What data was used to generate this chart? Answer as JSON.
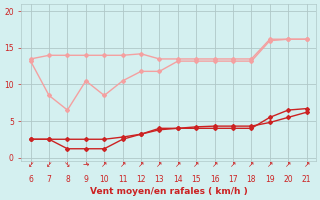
{
  "x": [
    6,
    7,
    8,
    9,
    10,
    11,
    12,
    13,
    14,
    15,
    16,
    17,
    18,
    19,
    20,
    21
  ],
  "series": [
    {
      "label": "rafales_light",
      "y": [
        13.5,
        14.0,
        14.0,
        14.0,
        14.0,
        14.0,
        14.2,
        13.5,
        13.5,
        13.5,
        13.5,
        13.5,
        13.5,
        16.2,
        16.2,
        16.2
      ],
      "color": "#f4a0a0",
      "linewidth": 1.0,
      "marker": "D",
      "markersize": 2.0,
      "zorder": 2
    },
    {
      "label": "vent_light",
      "y": [
        13.2,
        8.5,
        6.5,
        10.5,
        8.5,
        10.5,
        11.8,
        11.8,
        13.2,
        13.2,
        13.2,
        13.2,
        13.2,
        16.0,
        16.2,
        16.2
      ],
      "color": "#f4a0a0",
      "linewidth": 1.0,
      "marker": "D",
      "markersize": 2.0,
      "zorder": 2
    },
    {
      "label": "rafales_dark",
      "y": [
        2.5,
        2.5,
        1.2,
        1.2,
        1.2,
        2.5,
        3.2,
        4.0,
        4.0,
        4.0,
        4.0,
        4.0,
        4.0,
        5.5,
        6.5,
        6.7
      ],
      "color": "#cc2222",
      "linewidth": 1.0,
      "marker": "D",
      "markersize": 2.0,
      "zorder": 3
    },
    {
      "label": "vent_dark",
      "y": [
        2.5,
        2.5,
        2.5,
        2.5,
        2.5,
        2.8,
        3.2,
        3.8,
        4.0,
        4.2,
        4.3,
        4.3,
        4.3,
        4.8,
        5.5,
        6.2
      ],
      "color": "#cc2222",
      "linewidth": 1.0,
      "marker": "D",
      "markersize": 2.0,
      "zorder": 3
    }
  ],
  "xlim": [
    5.5,
    21.5
  ],
  "ylim": [
    -0.5,
    21
  ],
  "xticks": [
    6,
    7,
    8,
    9,
    10,
    11,
    12,
    13,
    14,
    15,
    16,
    17,
    18,
    19,
    20,
    21
  ],
  "yticks": [
    0,
    5,
    10,
    15,
    20
  ],
  "xlabel": "Vent moyen/en rafales ( km/h )",
  "background_color": "#d4f0f0",
  "grid_color": "#b0c8c8",
  "tick_color": "#cc2222",
  "label_color": "#cc2222",
  "arrow_chars": [
    "↙",
    "↙",
    "↘",
    "→",
    "↗",
    "↗",
    "↗",
    "↗",
    "↗",
    "↗",
    "↗",
    "↗",
    "↗",
    "↗",
    "↗",
    "↗"
  ],
  "title": ""
}
